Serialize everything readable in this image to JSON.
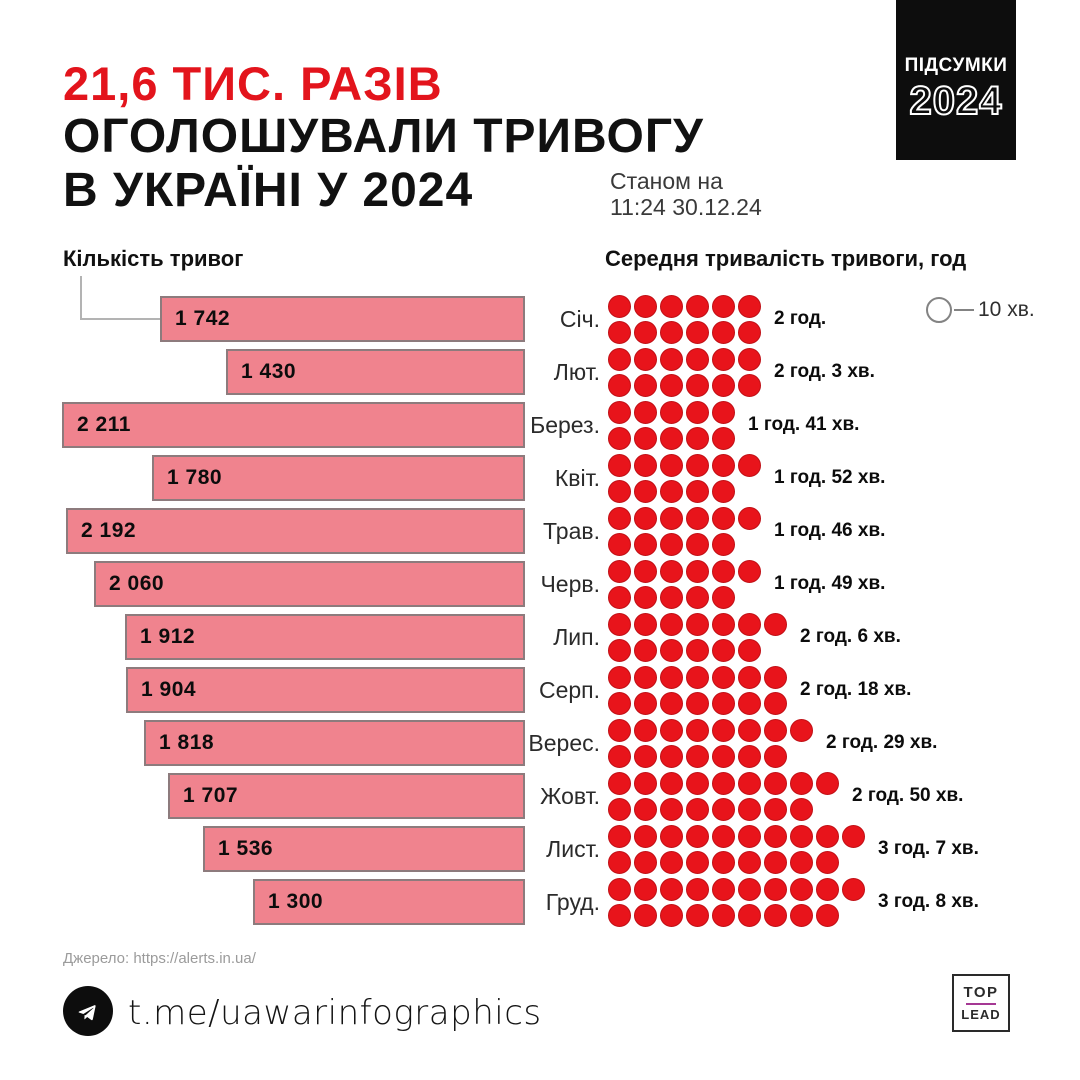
{
  "header": {
    "headline_red": "21,6 ТИС. РАЗІВ",
    "headline_line2": "ОГОЛОШУВАЛИ ТРИВОГУ",
    "headline_line3": "В УКРАЇНІ У 2024",
    "asof_label": "Станом на",
    "asof_value": "11:24 30.12.24",
    "badge_line1": "ПІДСУМКИ",
    "badge_line2": "2024"
  },
  "chart_headers": {
    "left": "Кількість тривог",
    "right": "Середня тривалість тривоги, год"
  },
  "legend": {
    "dot_value": "10 хв."
  },
  "source": "Джерело: https://alerts.in.ua/",
  "footer": {
    "telegram_handle": "t.me/uawarinfographics",
    "logo_line1": "TOP",
    "logo_line2": "LEAD"
  },
  "colors": {
    "accent_red": "#e3141c",
    "bar_fill": "#f0838e",
    "bar_border": "#8d7b7d",
    "dot_fill": "#e8141b",
    "badge_bg": "#0d0d0d",
    "logo_line": "#a53894"
  },
  "chart_data": {
    "type": "bar",
    "title": "21,6 тис. разів оголошували тривогу в Україні у 2024",
    "categories": [
      "Січ.",
      "Лют.",
      "Берез.",
      "Квіт.",
      "Трав.",
      "Черв.",
      "Лип.",
      "Серп.",
      "Верес.",
      "Жовт.",
      "Лист.",
      "Груд."
    ],
    "series": [
      {
        "name": "Кількість тривог",
        "values": [
          1742,
          1430,
          2211,
          1780,
          2192,
          2060,
          1912,
          1904,
          1818,
          1707,
          1536,
          1300
        ],
        "display": [
          "1 742",
          "1 430",
          "2 211",
          "1 780",
          "2 192",
          "2 060",
          "1 912",
          "1 904",
          "1 818",
          "1 707",
          "1 536",
          "1 300"
        ]
      },
      {
        "name": "Середня тривалість тривоги, год",
        "minutes": [
          120,
          123,
          101,
          112,
          106,
          109,
          126,
          138,
          149,
          170,
          187,
          188
        ],
        "labels": [
          "2 год.",
          "2 год. 3 хв.",
          "1 год. 41 хв.",
          "1 год. 52 хв.",
          "1 год. 46 хв.",
          "1 год. 49 хв.",
          "2 год. 6 хв.",
          "2 год. 18 хв.",
          "2 год. 29 хв.",
          "2 год. 50 хв.",
          "3 год. 7 хв.",
          "3 год. 8 хв."
        ],
        "dot_counts": [
          12,
          12,
          10,
          11,
          11,
          11,
          13,
          14,
          15,
          17,
          19,
          19
        ],
        "minutes_per_dot": 10
      }
    ],
    "xlim": [
      0,
      2211
    ],
    "grid": false,
    "legend_position": "top-right"
  }
}
